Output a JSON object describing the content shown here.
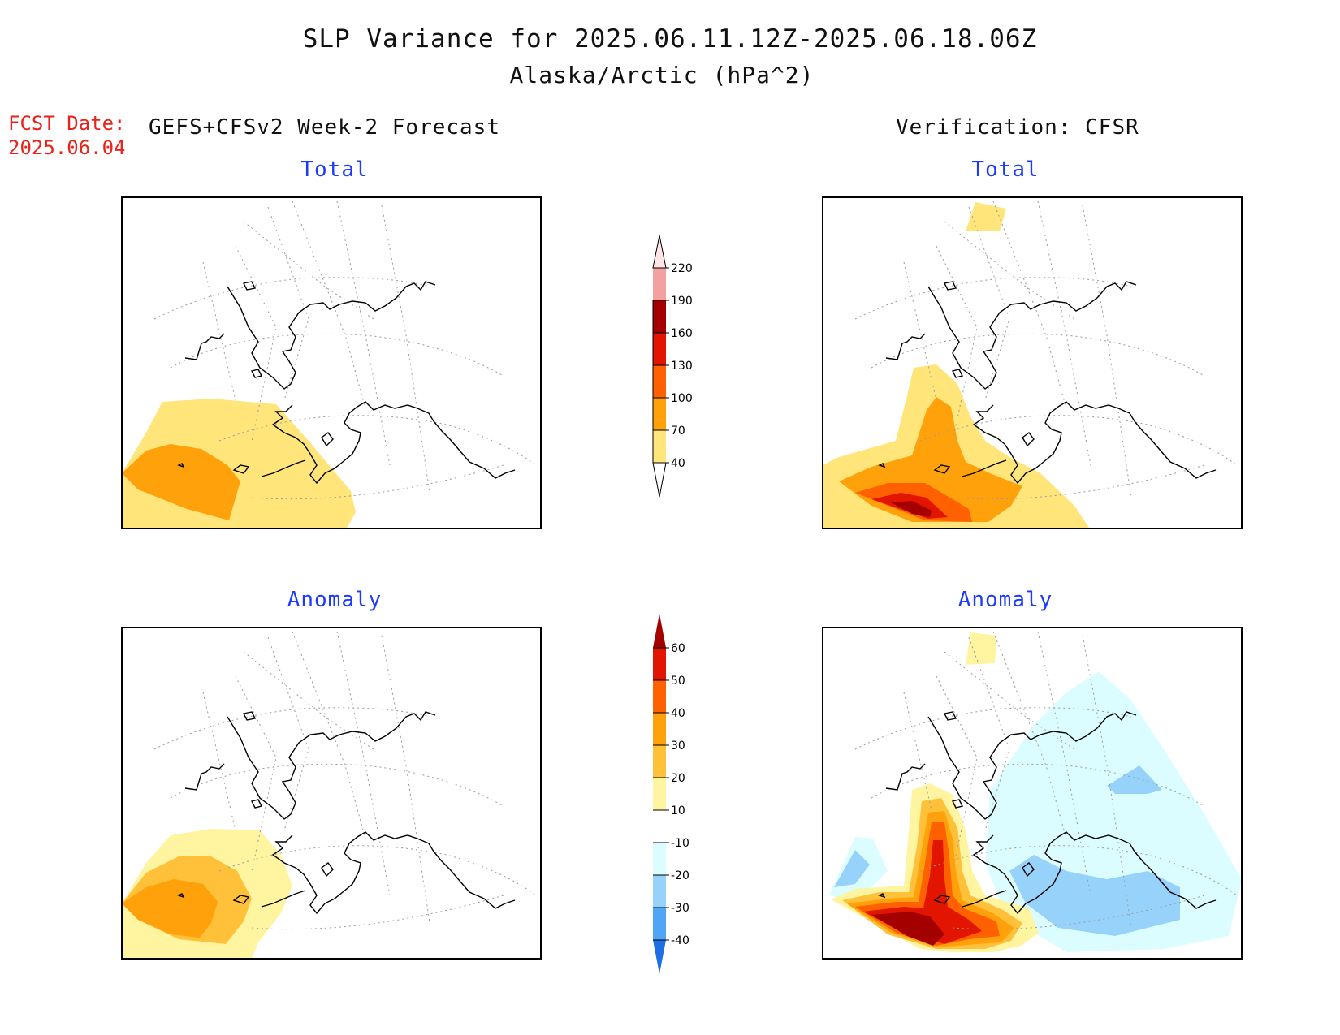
{
  "header": {
    "title": "SLP Variance for 2025.06.11.12Z-2025.06.18.06Z",
    "subtitle": "Alaska/Arctic (hPa^2)",
    "fcst_label": "FCST Date:",
    "fcst_date": "2025.06.04",
    "left_column": "GEFS+CFSv2 Week-2 Forecast",
    "right_column": "Verification: CFSR"
  },
  "panels": {
    "forecast_total": "Total",
    "verification_total": "Total",
    "forecast_anomaly": "Anomaly",
    "verification_anomaly": "Anomaly"
  },
  "colorbars": {
    "total": {
      "levels": [
        "40",
        "70",
        "100",
        "130",
        "160",
        "190",
        "220"
      ],
      "colors": [
        "#ffe57a",
        "#ffa10a",
        "#ff6000",
        "#e11500",
        "#a50000",
        "#f3a0a0",
        "#ffe5e5"
      ]
    },
    "anomaly": {
      "levels": [
        "60",
        "50",
        "40",
        "30",
        "20",
        "10",
        "-10",
        "-20",
        "-30",
        "-40"
      ],
      "colors_top_to_bottom": [
        "#a50000",
        "#e11500",
        "#ff6000",
        "#ffa10a",
        "#ffc03a",
        "#fff4a0",
        "#ffffff",
        "#dcfdff",
        "#96d2fa",
        "#50a5f5",
        "#1e6ee6"
      ]
    }
  },
  "map_colors": {
    "c40": "#ffe57a",
    "c70": "#ffa10a",
    "c100": "#ff6000",
    "c130": "#e11500",
    "c160": "#a50000",
    "a10": "#fff4a0",
    "a20": "#ffc03a",
    "a30": "#ffa10a",
    "a40": "#ff6000",
    "a50": "#e11500",
    "a60": "#a50000",
    "n10": "#dcfdff",
    "n20": "#96d2fa"
  }
}
